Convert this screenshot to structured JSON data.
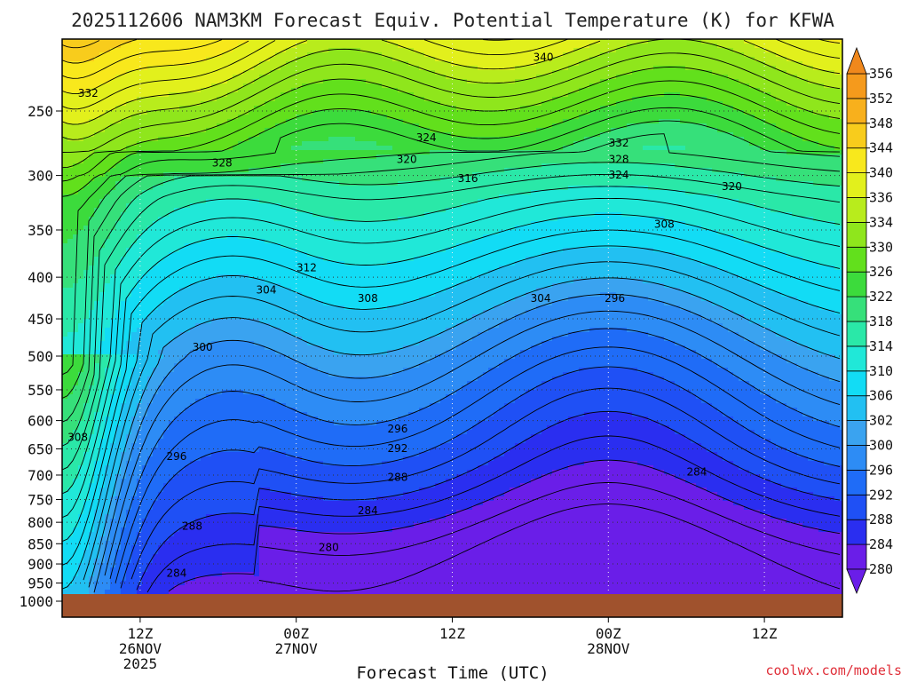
{
  "chart_data": {
    "type": "heatmap",
    "subtype": "time-height cross section (filled contour)",
    "title": "2025112606 NAM3KM Forecast Equiv. Potential Temperature (K) for KFWA",
    "xlabel": "Forecast Time (UTC)",
    "ylabel": "",
    "y_axis": {
      "scale": "log-pressure, inverted",
      "ylim": [
        1000,
        200
      ],
      "ticks": [
        250,
        300,
        350,
        400,
        450,
        500,
        550,
        600,
        650,
        700,
        750,
        800,
        850,
        900,
        950,
        1000
      ]
    },
    "x_axis": {
      "ticks": [
        {
          "hour": 6,
          "line1": "12Z",
          "line2": "26NOV",
          "line3": "2025"
        },
        {
          "hour": 18,
          "line1": "00Z",
          "line2": "27NOV",
          "line3": ""
        },
        {
          "hour": 30,
          "line1": "12Z",
          "line2": "",
          "line3": ""
        },
        {
          "hour": 42,
          "line1": "00Z",
          "line2": "28NOV",
          "line3": ""
        },
        {
          "hour": 54,
          "line1": "12Z",
          "line2": "",
          "line3": ""
        }
      ],
      "xlim_hours": [
        0,
        60
      ]
    },
    "grid": true,
    "colorbar": {
      "units": "K",
      "levels": [
        280,
        284,
        288,
        292,
        296,
        300,
        302,
        306,
        310,
        314,
        318,
        322,
        326,
        330,
        334,
        336,
        340,
        344,
        348,
        352,
        356
      ],
      "colors": [
        "#6a1ee8",
        "#2a2ef0",
        "#1f50f5",
        "#1f6cf7",
        "#2d8cf5",
        "#3aa3f0",
        "#22c0f2",
        "#12dcf5",
        "#20e8d8",
        "#2ae8a8",
        "#36e07a",
        "#3cdb3c",
        "#62e01c",
        "#8fe61c",
        "#b8ec1c",
        "#e2f01c",
        "#f8e81c",
        "#f8cc1c",
        "#f8b01c",
        "#f59a1c",
        "#f0881c"
      ]
    },
    "contour_labels": [
      {
        "text": "332",
        "hour": 2.0,
        "p": 238
      },
      {
        "text": "340",
        "hour": 37.0,
        "p": 215
      },
      {
        "text": "324",
        "hour": 28.0,
        "p": 270
      },
      {
        "text": "328",
        "hour": 12.3,
        "p": 290
      },
      {
        "text": "320",
        "hour": 26.5,
        "p": 287
      },
      {
        "text": "316",
        "hour": 31.2,
        "p": 303
      },
      {
        "text": "332",
        "hour": 42.8,
        "p": 274
      },
      {
        "text": "328",
        "hour": 42.8,
        "p": 287
      },
      {
        "text": "324",
        "hour": 42.8,
        "p": 300
      },
      {
        "text": "320",
        "hour": 51.5,
        "p": 310
      },
      {
        "text": "308",
        "hour": 46.3,
        "p": 345
      },
      {
        "text": "312",
        "hour": 18.8,
        "p": 390
      },
      {
        "text": "304",
        "hour": 15.7,
        "p": 415
      },
      {
        "text": "308",
        "hour": 23.5,
        "p": 425
      },
      {
        "text": "304",
        "hour": 36.8,
        "p": 425
      },
      {
        "text": "296",
        "hour": 42.5,
        "p": 425
      },
      {
        "text": "300",
        "hour": 10.8,
        "p": 488
      },
      {
        "text": "308",
        "hour": 1.2,
        "p": 630
      },
      {
        "text": "296",
        "hour": 8.8,
        "p": 665
      },
      {
        "text": "296",
        "hour": 25.8,
        "p": 615
      },
      {
        "text": "292",
        "hour": 25.8,
        "p": 650
      },
      {
        "text": "288",
        "hour": 25.8,
        "p": 705
      },
      {
        "text": "284",
        "hour": 48.8,
        "p": 695
      },
      {
        "text": "284",
        "hour": 23.5,
        "p": 775
      },
      {
        "text": "288",
        "hour": 10.0,
        "p": 810
      },
      {
        "text": "280",
        "hour": 20.5,
        "p": 860
      },
      {
        "text": "284",
        "hour": 8.8,
        "p": 925
      }
    ]
  },
  "footer": {
    "credit": "coolwx.com/models"
  }
}
